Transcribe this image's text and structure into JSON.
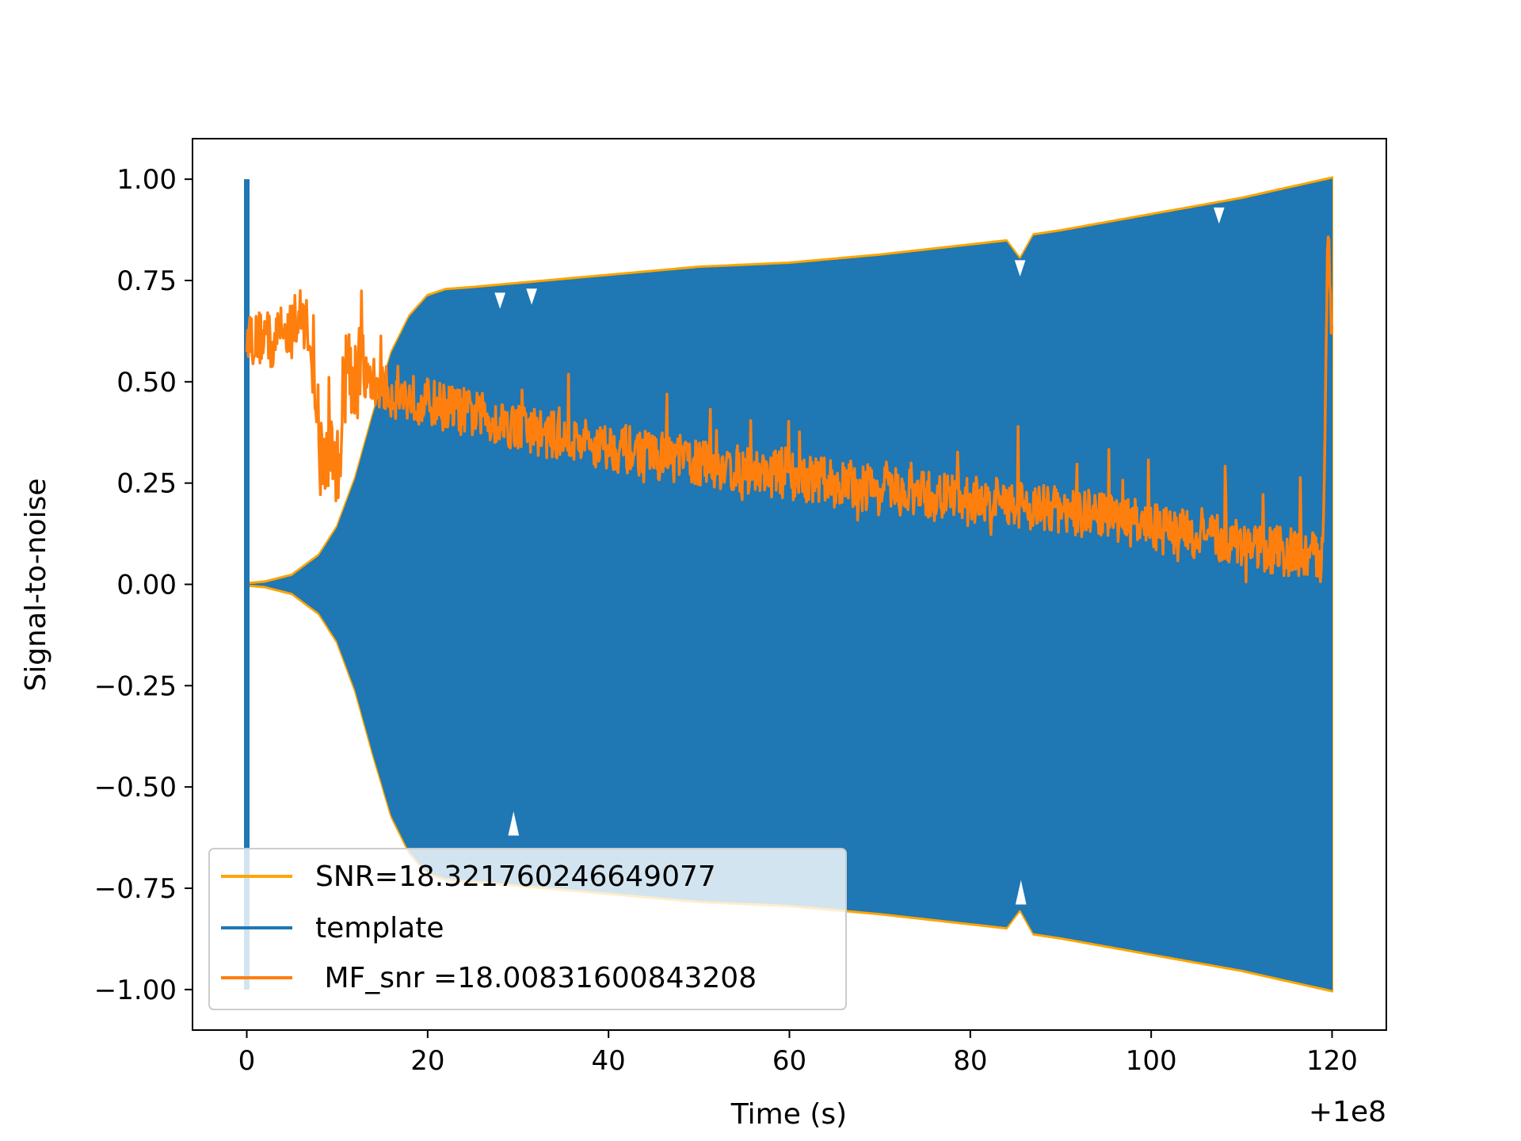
{
  "chart_data": {
    "type": "line",
    "title": "",
    "xlabel": "Time (s)",
    "ylabel": "Signal-to-noise",
    "x_offset_label": "+1e8",
    "xlim": [
      -6,
      126
    ],
    "ylim": [
      -1.1,
      1.1
    ],
    "xticks": [
      0,
      20,
      40,
      60,
      80,
      100,
      120
    ],
    "xtick_labels": [
      "0",
      "20",
      "40",
      "60",
      "80",
      "100",
      "120"
    ],
    "yticks": [
      1.0,
      0.75,
      0.5,
      0.25,
      0.0,
      -0.25,
      -0.5,
      -0.75,
      -1.0
    ],
    "ytick_labels": [
      "1.00",
      "0.75",
      "0.50",
      "0.25",
      "0.00",
      "−0.25",
      "−0.50",
      "−0.75",
      "−1.00"
    ],
    "grid": false,
    "legend_position": "lower-left",
    "colors": {
      "snr": "#ffa500",
      "template": "#1f77b4",
      "mf_snr": "#ff7f0e"
    },
    "series": [
      {
        "name": "SNR=18.321760246649077",
        "description_type": "envelope",
        "x": [
          0,
          0.5,
          2,
          5,
          8,
          10,
          12,
          14,
          16,
          18,
          20,
          22,
          25,
          30,
          40,
          50,
          60,
          70,
          80,
          84,
          85.5,
          87,
          90,
          100,
          110,
          120
        ],
        "upper": [
          0.0,
          0.0,
          0.003,
          0.02,
          0.07,
          0.14,
          0.26,
          0.42,
          0.57,
          0.66,
          0.71,
          0.725,
          0.73,
          0.74,
          0.76,
          0.78,
          0.79,
          0.81,
          0.835,
          0.845,
          0.8,
          0.86,
          0.87,
          0.91,
          0.95,
          1.0
        ],
        "lower": [
          0.0,
          0.0,
          -0.003,
          -0.02,
          -0.07,
          -0.14,
          -0.26,
          -0.42,
          -0.57,
          -0.66,
          -0.71,
          -0.725,
          -0.73,
          -0.74,
          -0.76,
          -0.78,
          -0.79,
          -0.81,
          -0.835,
          -0.845,
          -0.8,
          -0.86,
          -0.87,
          -0.91,
          -0.95,
          -1.0
        ]
      },
      {
        "name": "template",
        "description_type": "filled-oscillation",
        "x": [
          0,
          0.5,
          2,
          5,
          8,
          10,
          12,
          14,
          16,
          18,
          20,
          22,
          25,
          30,
          40,
          50,
          60,
          70,
          80,
          84,
          85.5,
          87,
          90,
          100,
          110,
          120
        ],
        "upper": [
          0.0,
          0.0,
          0.003,
          0.02,
          0.07,
          0.14,
          0.26,
          0.42,
          0.57,
          0.66,
          0.71,
          0.725,
          0.73,
          0.74,
          0.76,
          0.78,
          0.79,
          0.81,
          0.835,
          0.845,
          0.8,
          0.86,
          0.87,
          0.91,
          0.95,
          1.0
        ],
        "lower": [
          0.0,
          0.0,
          -0.003,
          -0.02,
          -0.07,
          -0.14,
          -0.26,
          -0.42,
          -0.57,
          -0.66,
          -0.71,
          -0.725,
          -0.73,
          -0.74,
          -0.76,
          -0.78,
          -0.79,
          -0.81,
          -0.835,
          -0.845,
          -0.8,
          -0.86,
          -0.87,
          -0.91,
          -0.95,
          -1.0
        ],
        "spike_x": 0,
        "spike_range": [
          -1.0,
          1.0
        ]
      },
      {
        "name": " MF_snr =18.00831600843208",
        "description_type": "noisy-line",
        "x": [
          0,
          1,
          2,
          3,
          4,
          5,
          6,
          7,
          8,
          9,
          10,
          11,
          12,
          14,
          16,
          18,
          20,
          25,
          30,
          35,
          40,
          45,
          50,
          55,
          60,
          65,
          70,
          75,
          80,
          85,
          90,
          95,
          100,
          105,
          110,
          115,
          118,
          119,
          119.5,
          120
        ],
        "values": [
          0.63,
          0.6,
          0.62,
          0.58,
          0.66,
          0.61,
          0.67,
          0.62,
          0.3,
          0.32,
          0.28,
          0.55,
          0.52,
          0.5,
          0.47,
          0.46,
          0.45,
          0.42,
          0.39,
          0.36,
          0.34,
          0.32,
          0.3,
          0.28,
          0.27,
          0.25,
          0.23,
          0.22,
          0.21,
          0.2,
          0.18,
          0.17,
          0.14,
          0.12,
          0.1,
          0.08,
          0.07,
          0.06,
          0.89,
          0.6
        ]
      }
    ]
  }
}
